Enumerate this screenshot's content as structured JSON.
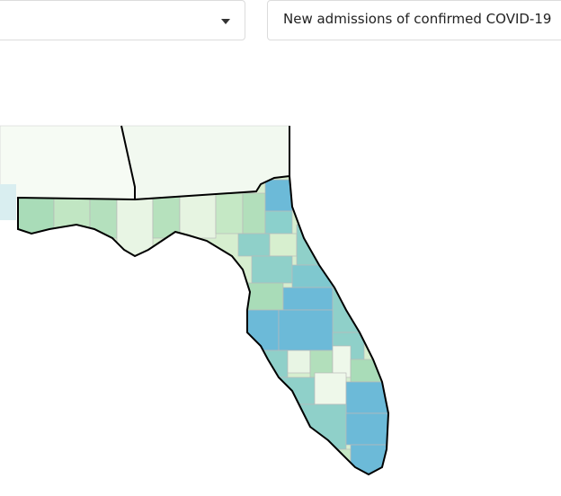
{
  "dropdowns": {
    "metric": "New admissions of confirmed COVID-19"
  }
}
